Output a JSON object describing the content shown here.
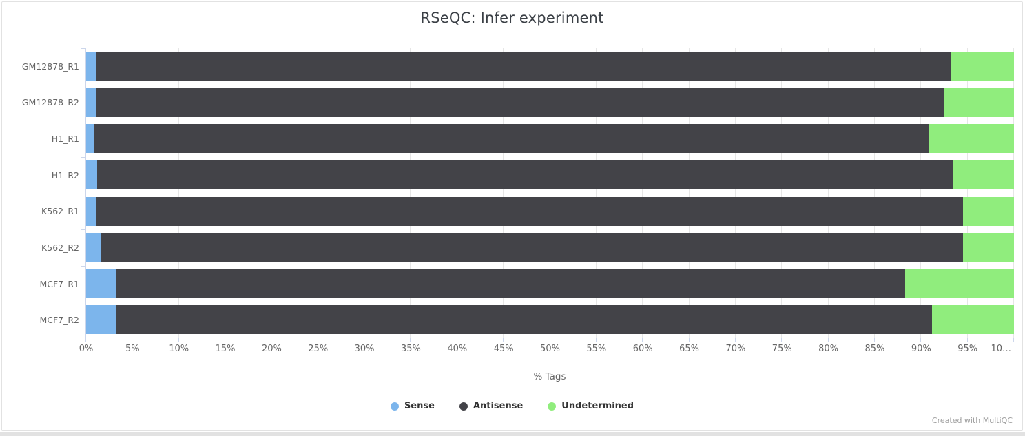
{
  "footer": {
    "credit": "Created with MultiQC"
  },
  "chart_data": {
    "type": "bar",
    "orientation": "horizontal",
    "stacked": true,
    "title": "RSeQC: Infer experiment",
    "xlabel": "% Tags",
    "xlim": [
      0,
      100
    ],
    "grid": true,
    "legend_position": "bottom",
    "categories": [
      "GM12878_R1",
      "GM12878_R2",
      "H1_R1",
      "H1_R2",
      "K562_R1",
      "K562_R2",
      "MCF7_R1",
      "MCF7_R2"
    ],
    "series": [
      {
        "name": "Sense",
        "color": "#7cb5ec",
        "values": [
          1.1,
          1.1,
          0.9,
          1.2,
          1.1,
          1.6,
          3.2,
          3.2
        ]
      },
      {
        "name": "Antisense",
        "color": "#434348",
        "values": [
          92.1,
          91.3,
          90.0,
          92.2,
          93.4,
          92.9,
          85.1,
          88.0
        ]
      },
      {
        "name": "Undetermined",
        "color": "#90ed7d",
        "values": [
          6.8,
          7.6,
          9.1,
          6.6,
          5.5,
          5.5,
          11.7,
          8.8
        ]
      }
    ],
    "xticks": [
      0,
      5,
      10,
      15,
      20,
      25,
      30,
      35,
      40,
      45,
      50,
      55,
      60,
      65,
      70,
      75,
      80,
      85,
      90,
      95,
      100
    ],
    "xtick_labels": [
      "0%",
      "5%",
      "10%",
      "15%",
      "20%",
      "25%",
      "30%",
      "35%",
      "40%",
      "45%",
      "50%",
      "55%",
      "60%",
      "65%",
      "70%",
      "75%",
      "80%",
      "85%",
      "90%",
      "95%",
      "10…"
    ],
    "axis_colors": {
      "line": "#ccd6eb",
      "gridline": "#e6e6e6",
      "tick_label": "#666666"
    }
  }
}
